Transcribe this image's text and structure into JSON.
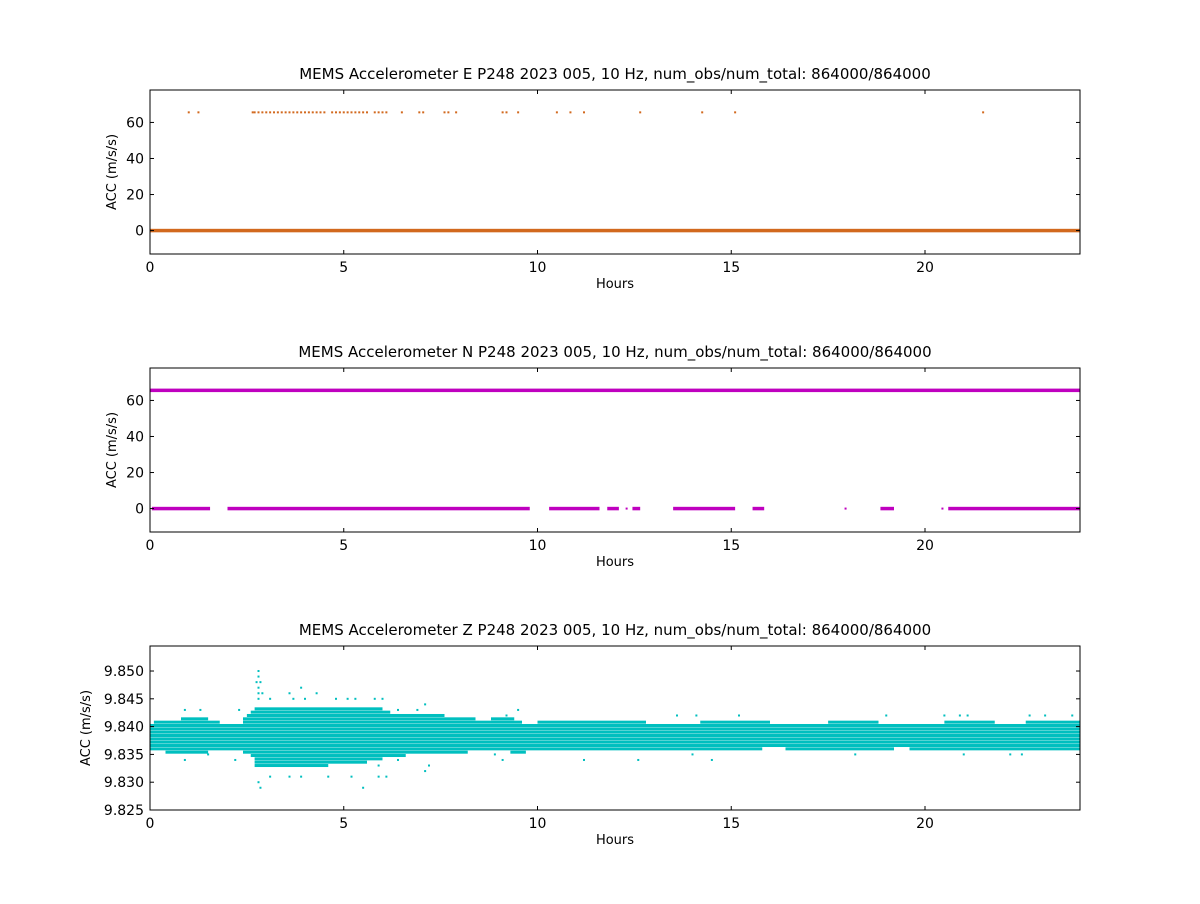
{
  "chart_data": [
    {
      "type": "scatter",
      "title": "MEMS Accelerometer E P248 2023 005, 10 Hz, num_obs/num_total: 864000/864000",
      "xlabel": "Hours",
      "ylabel": "ACC (m/s/s)",
      "xlim": [
        0,
        24
      ],
      "ylim": [
        -13,
        78
      ],
      "xticks": [
        0,
        5,
        10,
        15,
        20
      ],
      "yticks": [
        0,
        20,
        40,
        60
      ],
      "ytick_decimals": 0,
      "color": "#d2691e",
      "series": [
        {
          "bands": [
            {
              "y": 0.0,
              "x_ranges": [
                [
                  0,
                  24
                ]
              ]
            }
          ],
          "points": [
            {
              "x": 1.0,
              "y": 65.6
            },
            {
              "x": 1.25,
              "y": 65.6
            },
            {
              "x": 2.65,
              "y": 65.6
            },
            {
              "x": 2.7,
              "y": 65.6
            },
            {
              "x": 2.8,
              "y": 65.6
            },
            {
              "x": 2.9,
              "y": 65.6
            },
            {
              "x": 3.0,
              "y": 65.6
            },
            {
              "x": 3.1,
              "y": 65.6
            },
            {
              "x": 3.2,
              "y": 65.6
            },
            {
              "x": 3.3,
              "y": 65.6
            },
            {
              "x": 3.4,
              "y": 65.6
            },
            {
              "x": 3.5,
              "y": 65.6
            },
            {
              "x": 3.6,
              "y": 65.6
            },
            {
              "x": 3.7,
              "y": 65.6
            },
            {
              "x": 3.8,
              "y": 65.6
            },
            {
              "x": 3.9,
              "y": 65.6
            },
            {
              "x": 4.0,
              "y": 65.6
            },
            {
              "x": 4.1,
              "y": 65.6
            },
            {
              "x": 4.2,
              "y": 65.6
            },
            {
              "x": 4.3,
              "y": 65.6
            },
            {
              "x": 4.4,
              "y": 65.6
            },
            {
              "x": 4.5,
              "y": 65.6
            },
            {
              "x": 4.7,
              "y": 65.6
            },
            {
              "x": 4.8,
              "y": 65.6
            },
            {
              "x": 4.9,
              "y": 65.6
            },
            {
              "x": 5.0,
              "y": 65.6
            },
            {
              "x": 5.1,
              "y": 65.6
            },
            {
              "x": 5.2,
              "y": 65.6
            },
            {
              "x": 5.3,
              "y": 65.6
            },
            {
              "x": 5.4,
              "y": 65.6
            },
            {
              "x": 5.5,
              "y": 65.6
            },
            {
              "x": 5.6,
              "y": 65.6
            },
            {
              "x": 5.8,
              "y": 65.6
            },
            {
              "x": 5.9,
              "y": 65.6
            },
            {
              "x": 6.0,
              "y": 65.6
            },
            {
              "x": 6.1,
              "y": 65.6
            },
            {
              "x": 6.5,
              "y": 65.6
            },
            {
              "x": 6.95,
              "y": 65.6
            },
            {
              "x": 7.05,
              "y": 65.6
            },
            {
              "x": 7.6,
              "y": 65.6
            },
            {
              "x": 7.7,
              "y": 65.6
            },
            {
              "x": 7.9,
              "y": 65.6
            },
            {
              "x": 9.1,
              "y": 65.6
            },
            {
              "x": 9.2,
              "y": 65.6
            },
            {
              "x": 9.5,
              "y": 65.6
            },
            {
              "x": 10.5,
              "y": 65.6
            },
            {
              "x": 10.85,
              "y": 65.6
            },
            {
              "x": 11.2,
              "y": 65.6
            },
            {
              "x": 12.65,
              "y": 65.6
            },
            {
              "x": 14.25,
              "y": 65.6
            },
            {
              "x": 15.1,
              "y": 65.6
            },
            {
              "x": 21.5,
              "y": 65.6
            }
          ]
        }
      ]
    },
    {
      "type": "scatter",
      "title": "MEMS Accelerometer N P248 2023 005, 10 Hz, num_obs/num_total: 864000/864000",
      "xlabel": "Hours",
      "ylabel": "ACC (m/s/s)",
      "xlim": [
        0,
        24
      ],
      "ylim": [
        -13,
        78
      ],
      "xticks": [
        0,
        5,
        10,
        15,
        20
      ],
      "yticks": [
        0,
        20,
        40,
        60
      ],
      "ytick_decimals": 0,
      "color": "#bf00bf",
      "series": [
        {
          "bands": [
            {
              "y": 65.6,
              "x_ranges": [
                [
                  0,
                  24
                ]
              ]
            },
            {
              "y": 0.0,
              "x_ranges": [
                [
                  0.05,
                  1.55
                ],
                [
                  2.0,
                  9.8
                ],
                [
                  10.3,
                  11.6
                ],
                [
                  11.8,
                  12.1
                ],
                [
                  12.45,
                  12.65
                ],
                [
                  13.5,
                  15.1
                ],
                [
                  15.55,
                  15.85
                ],
                [
                  18.85,
                  19.2
                ],
                [
                  20.6,
                  24
                ]
              ]
            }
          ],
          "points": [
            {
              "x": 12.3,
              "y": 0.0
            },
            {
              "x": 17.95,
              "y": 0.0
            },
            {
              "x": 20.45,
              "y": 0.0
            }
          ]
        }
      ]
    },
    {
      "type": "scatter",
      "title": "MEMS Accelerometer Z P248 2023 005, 10 Hz, num_obs/num_total: 864000/864000",
      "xlabel": "Hours",
      "ylabel": "ACC (m/s/s)",
      "xlim": [
        0,
        24
      ],
      "ylim": [
        9.825,
        9.8545
      ],
      "xticks": [
        0,
        5,
        10,
        15,
        20
      ],
      "yticks": [
        9.825,
        9.83,
        9.835,
        9.84,
        9.845,
        9.85
      ],
      "ytick_decimals": 3,
      "color": "#00bfbf",
      "series": [
        {
          "bands": [
            {
              "y": 9.8402,
              "x_ranges": [
                [
                  0,
                  24
                ]
              ]
            },
            {
              "y": 9.8396,
              "x_ranges": [
                [
                  0,
                  24
                ]
              ]
            },
            {
              "y": 9.839,
              "x_ranges": [
                [
                  0,
                  24
                ]
              ]
            },
            {
              "y": 9.8384,
              "x_ranges": [
                [
                  0,
                  24
                ]
              ]
            },
            {
              "y": 9.8378,
              "x_ranges": [
                [
                  0,
                  24
                ]
              ]
            },
            {
              "y": 9.8372,
              "x_ranges": [
                [
                  0,
                  24
                ]
              ]
            },
            {
              "y": 9.8366,
              "x_ranges": [
                [
                  0,
                  24
                ]
              ]
            },
            {
              "y": 9.836,
              "x_ranges": [
                [
                  0,
                  15.8
                ],
                [
                  16.4,
                  19.2
                ],
                [
                  19.6,
                  24
                ]
              ]
            },
            {
              "y": 9.8408,
              "x_ranges": [
                [
                  0.1,
                  1.8
                ],
                [
                  2.4,
                  9.6
                ],
                [
                  10.0,
                  12.8
                ],
                [
                  14.2,
                  16.0
                ],
                [
                  17.5,
                  18.8
                ],
                [
                  20.5,
                  21.8
                ],
                [
                  22.6,
                  24
                ]
              ]
            },
            {
              "y": 9.8414,
              "x_ranges": [
                [
                  0.8,
                  1.5
                ],
                [
                  2.4,
                  8.4
                ],
                [
                  8.8,
                  9.4
                ]
              ]
            },
            {
              "y": 9.842,
              "x_ranges": [
                [
                  2.5,
                  7.6
                ]
              ]
            },
            {
              "y": 9.8426,
              "x_ranges": [
                [
                  2.6,
                  6.2
                ]
              ]
            },
            {
              "y": 9.8432,
              "x_ranges": [
                [
                  2.7,
                  6.0
                ]
              ]
            },
            {
              "y": 9.8354,
              "x_ranges": [
                [
                  0.4,
                  1.5
                ],
                [
                  2.4,
                  8.2
                ],
                [
                  9.3,
                  9.7
                ]
              ]
            },
            {
              "y": 9.8348,
              "x_ranges": [
                [
                  2.6,
                  6.6
                ]
              ]
            },
            {
              "y": 9.8342,
              "x_ranges": [
                [
                  2.7,
                  6.0
                ]
              ]
            },
            {
              "y": 9.8336,
              "x_ranges": [
                [
                  2.7,
                  5.6
                ]
              ]
            },
            {
              "y": 9.833,
              "x_ranges": [
                [
                  2.7,
                  4.6
                ]
              ]
            }
          ],
          "points": [
            {
              "x": 2.8,
              "y": 9.85
            },
            {
              "x": 2.8,
              "y": 9.849
            },
            {
              "x": 2.75,
              "y": 9.848
            },
            {
              "x": 2.85,
              "y": 9.848
            },
            {
              "x": 2.8,
              "y": 9.847
            },
            {
              "x": 2.8,
              "y": 9.846
            },
            {
              "x": 2.9,
              "y": 9.846
            },
            {
              "x": 3.9,
              "y": 9.847
            },
            {
              "x": 3.6,
              "y": 9.846
            },
            {
              "x": 4.3,
              "y": 9.846
            },
            {
              "x": 2.8,
              "y": 9.845
            },
            {
              "x": 3.1,
              "y": 9.845
            },
            {
              "x": 3.7,
              "y": 9.845
            },
            {
              "x": 4.0,
              "y": 9.845
            },
            {
              "x": 4.8,
              "y": 9.845
            },
            {
              "x": 5.1,
              "y": 9.845
            },
            {
              "x": 5.3,
              "y": 9.845
            },
            {
              "x": 5.8,
              "y": 9.845
            },
            {
              "x": 6.0,
              "y": 9.845
            },
            {
              "x": 7.1,
              "y": 9.844
            },
            {
              "x": 2.3,
              "y": 9.843
            },
            {
              "x": 6.4,
              "y": 9.843
            },
            {
              "x": 6.9,
              "y": 9.843
            },
            {
              "x": 0.9,
              "y": 9.843
            },
            {
              "x": 1.3,
              "y": 9.843
            },
            {
              "x": 2.85,
              "y": 9.829
            },
            {
              "x": 2.8,
              "y": 9.83
            },
            {
              "x": 3.1,
              "y": 9.831
            },
            {
              "x": 3.6,
              "y": 9.831
            },
            {
              "x": 3.9,
              "y": 9.831
            },
            {
              "x": 4.6,
              "y": 9.831
            },
            {
              "x": 5.2,
              "y": 9.831
            },
            {
              "x": 5.5,
              "y": 9.829
            },
            {
              "x": 5.9,
              "y": 9.831
            },
            {
              "x": 6.1,
              "y": 9.831
            },
            {
              "x": 7.1,
              "y": 9.832
            },
            {
              "x": 5.9,
              "y": 9.833
            },
            {
              "x": 6.4,
              "y": 9.834
            },
            {
              "x": 7.2,
              "y": 9.833
            },
            {
              "x": 2.2,
              "y": 9.834
            },
            {
              "x": 0.9,
              "y": 9.834
            },
            {
              "x": 1.5,
              "y": 9.835
            },
            {
              "x": 8.9,
              "y": 9.835
            },
            {
              "x": 9.1,
              "y": 9.834
            },
            {
              "x": 11.2,
              "y": 9.834
            },
            {
              "x": 12.6,
              "y": 9.834
            },
            {
              "x": 14.0,
              "y": 9.835
            },
            {
              "x": 14.5,
              "y": 9.834
            },
            {
              "x": 18.2,
              "y": 9.835
            },
            {
              "x": 21.0,
              "y": 9.835
            },
            {
              "x": 22.2,
              "y": 9.835
            },
            {
              "x": 22.5,
              "y": 9.835
            },
            {
              "x": 9.2,
              "y": 9.842
            },
            {
              "x": 9.5,
              "y": 9.843
            },
            {
              "x": 13.6,
              "y": 9.842
            },
            {
              "x": 14.1,
              "y": 9.842
            },
            {
              "x": 15.2,
              "y": 9.842
            },
            {
              "x": 19.0,
              "y": 9.842
            },
            {
              "x": 20.9,
              "y": 9.842
            },
            {
              "x": 21.1,
              "y": 9.842
            },
            {
              "x": 22.7,
              "y": 9.842
            },
            {
              "x": 23.1,
              "y": 9.842
            },
            {
              "x": 23.8,
              "y": 9.842
            },
            {
              "x": 20.5,
              "y": 9.842
            }
          ]
        }
      ]
    }
  ]
}
